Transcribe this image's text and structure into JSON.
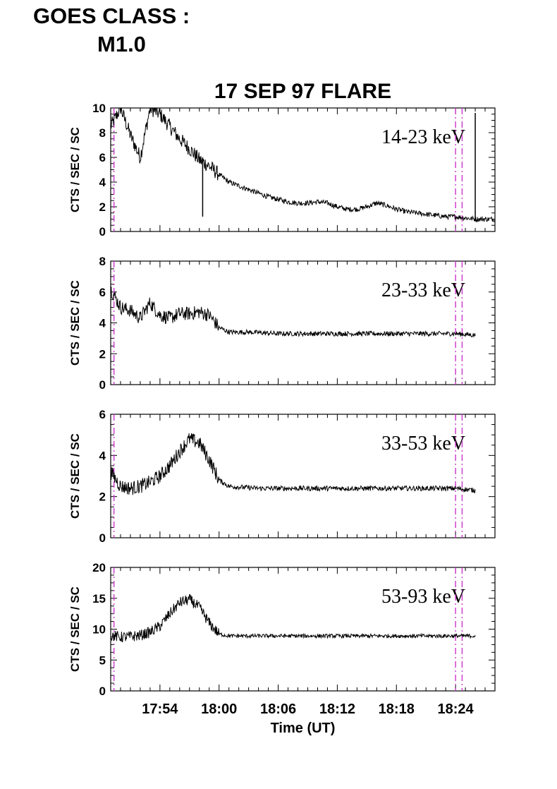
{
  "header": {
    "goes_label": "GOES CLASS :",
    "goes_value": "M1.0"
  },
  "title": "17 SEP 97 FLARE",
  "xaxis": {
    "label": "Time (UT)",
    "tick_labels": [
      "17:54",
      "18:00",
      "18:06",
      "18:12",
      "18:18",
      "18:24"
    ]
  },
  "colors": {
    "trace": "#000000",
    "marker": "#cc33cc"
  },
  "chart_data": [
    {
      "type": "line",
      "title": "14-23 keV",
      "ylabel": "CTS / SEC / SC",
      "ylim": [
        0,
        10
      ],
      "yticks": [
        "0",
        "2",
        "4",
        "6",
        "8",
        "10"
      ],
      "xlim": [
        "17:49:00",
        "18:28:00"
      ],
      "x": [
        "17:49:00",
        "17:50:00",
        "17:51:00",
        "17:52:00",
        "17:53:00",
        "17:54:00",
        "17:55:00",
        "17:56:00",
        "17:57:00",
        "17:58:00",
        "17:59:00",
        "18:00:00",
        "18:01:00",
        "18:02:00",
        "18:03:00",
        "18:04:00",
        "18:05:00",
        "18:06:00",
        "18:07:00",
        "18:08:00",
        "18:09:00",
        "18:10:00",
        "18:11:00",
        "18:12:00",
        "18:13:00",
        "18:14:00",
        "18:15:00",
        "18:16:00",
        "18:17:00",
        "18:18:00",
        "18:19:00",
        "18:20:00",
        "18:21:00",
        "18:22:00",
        "18:23:00",
        "18:24:00",
        "18:25:00",
        "18:26:00",
        "18:27:00",
        "18:28:00"
      ],
      "values": [
        8.5,
        10,
        7.8,
        6.0,
        10,
        9.5,
        8.5,
        7.5,
        6.7,
        5.8,
        5.3,
        4.6,
        4.0,
        3.7,
        3.4,
        3.1,
        2.8,
        2.6,
        2.4,
        2.3,
        2.3,
        2.4,
        2.3,
        2.0,
        1.8,
        1.8,
        2.0,
        2.3,
        2.1,
        1.8,
        1.6,
        1.5,
        1.4,
        1.3,
        1.2,
        1.2,
        1.1,
        1.0,
        1.0,
        1.0
      ],
      "noise": 0.6,
      "spikes": [
        {
          "x": "17:58:20",
          "y": 1.2
        },
        {
          "x": "18:26:00",
          "y": 9.6
        }
      ],
      "marker_lines": [
        "17:49:20",
        "18:24:00",
        "18:24:40"
      ]
    },
    {
      "type": "line",
      "title": "23-33 keV",
      "ylabel": "CTS / SEC / SC",
      "ylim": [
        0,
        8
      ],
      "yticks": [
        "0",
        "2",
        "4",
        "6",
        "8"
      ],
      "xlim": [
        "17:49:00",
        "18:28:00"
      ],
      "x": [
        "17:49:00",
        "17:50:00",
        "17:51:00",
        "17:52:00",
        "17:53:00",
        "17:54:00",
        "17:55:00",
        "17:56:00",
        "17:57:00",
        "17:58:00",
        "17:59:00",
        "18:00:00",
        "18:01:00",
        "18:03:00",
        "18:06:00",
        "18:09:00",
        "18:12:00",
        "18:15:00",
        "18:18:00",
        "18:21:00",
        "18:24:00",
        "18:26:00"
      ],
      "values": [
        6.2,
        5.0,
        4.8,
        4.3,
        5.3,
        4.5,
        4.3,
        4.6,
        4.6,
        4.7,
        4.5,
        3.7,
        3.4,
        3.4,
        3.3,
        3.3,
        3.3,
        3.3,
        3.3,
        3.3,
        3.3,
        3.2
      ],
      "noise": 0.45,
      "marker_lines": [
        "17:49:20",
        "18:24:00",
        "18:24:40"
      ]
    },
    {
      "type": "line",
      "title": "33-53 keV",
      "ylabel": "CTS / SEC / SC",
      "ylim": [
        0,
        6
      ],
      "yticks": [
        "0",
        "2",
        "4",
        "6"
      ],
      "xlim": [
        "17:49:00",
        "18:28:00"
      ],
      "x": [
        "17:49:00",
        "17:50:00",
        "17:51:00",
        "17:52:00",
        "17:53:00",
        "17:54:00",
        "17:55:00",
        "17:56:00",
        "17:57:00",
        "17:58:00",
        "17:59:00",
        "18:00:00",
        "18:01:00",
        "18:04:00",
        "18:08:00",
        "18:12:00",
        "18:16:00",
        "18:20:00",
        "18:24:00",
        "18:26:00"
      ],
      "values": [
        3.2,
        2.5,
        2.4,
        2.5,
        2.7,
        3.0,
        3.5,
        4.2,
        4.8,
        4.6,
        3.8,
        2.8,
        2.5,
        2.4,
        2.4,
        2.4,
        2.4,
        2.4,
        2.4,
        2.3
      ],
      "noise": 0.35,
      "marker_lines": [
        "17:49:20",
        "18:24:00",
        "18:24:40"
      ]
    },
    {
      "type": "line",
      "title": "53-93 keV",
      "ylabel": "CTS / SEC / SC",
      "ylim": [
        0,
        20
      ],
      "yticks": [
        "0",
        "5",
        "10",
        "15",
        "20"
      ],
      "xlim": [
        "17:49:00",
        "18:28:00"
      ],
      "x": [
        "17:49:00",
        "17:50:00",
        "17:51:00",
        "17:52:00",
        "17:53:00",
        "17:54:00",
        "17:55:00",
        "17:56:00",
        "17:57:00",
        "17:58:00",
        "17:59:00",
        "18:00:00",
        "18:01:00",
        "18:04:00",
        "18:08:00",
        "18:12:00",
        "18:16:00",
        "18:20:00",
        "18:24:00",
        "18:26:00"
      ],
      "values": [
        9,
        8.7,
        8.8,
        9,
        9.5,
        10.5,
        12.5,
        14.3,
        14.8,
        13.5,
        11,
        9.2,
        8.9,
        8.9,
        8.9,
        8.9,
        8.9,
        8.9,
        8.9,
        8.9
      ],
      "noise": 0.9,
      "marker_lines": [
        "17:49:20",
        "18:24:00",
        "18:24:40"
      ]
    }
  ]
}
